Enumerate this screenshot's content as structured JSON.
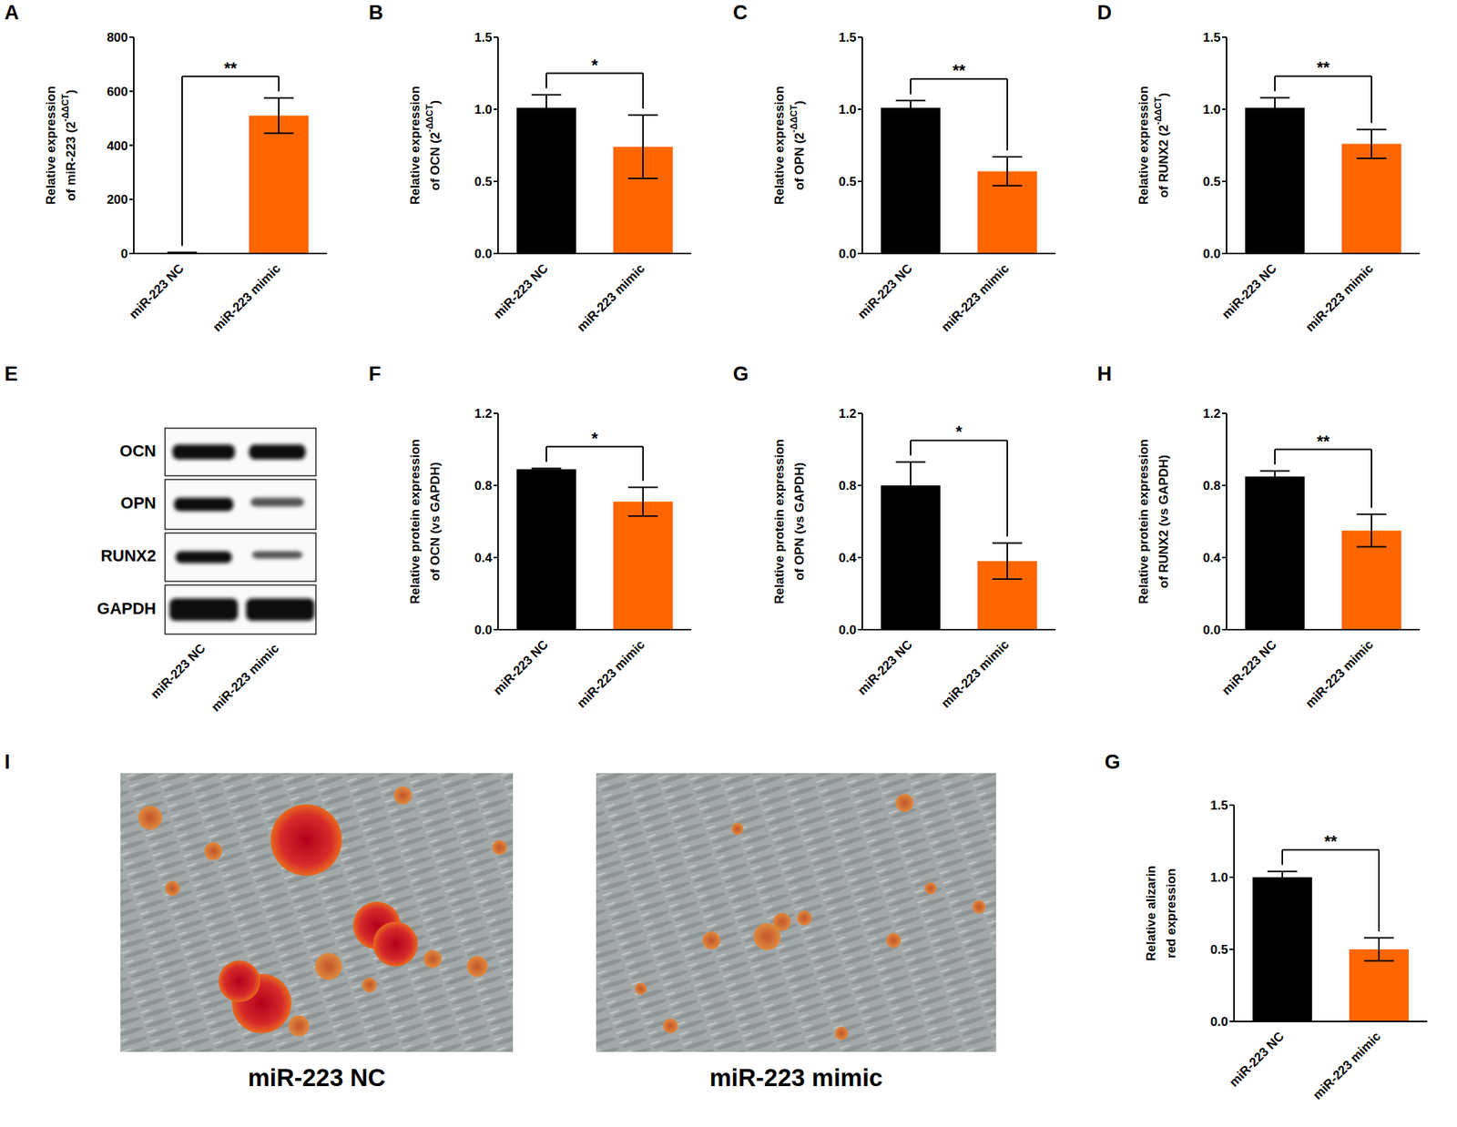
{
  "chart_data": [
    {
      "type": "bar",
      "title": "A",
      "y_label": [
        "Relative expression",
        "of miR-223 (2-ΔΔCT)"
      ],
      "categories": [
        "miR-223 NC",
        "miR-223 mimic"
      ],
      "values": [
        3,
        510
      ],
      "errors": [
        1,
        65
      ],
      "colors": [
        "#000000",
        "#ff6600"
      ],
      "ylim": [
        0,
        800
      ],
      "yticks": [
        0,
        200,
        400,
        600,
        800
      ],
      "annotations": [
        "**"
      ]
    },
    {
      "type": "bar",
      "title": "B",
      "y_label": [
        "Relative expression",
        "of OCN (2-ΔΔCT)"
      ],
      "categories": [
        "miR-223 NC",
        "miR-223 mimic"
      ],
      "values": [
        1.01,
        0.74
      ],
      "errors": [
        0.09,
        0.22
      ],
      "colors": [
        "#000000",
        "#ff6600"
      ],
      "ylim": [
        0,
        1.5
      ],
      "yticks": [
        {
          "value": 0,
          "label": "0.0"
        },
        0.5,
        {
          "value": 1,
          "label": "1.0"
        },
        1.5
      ],
      "annotations": [
        "*"
      ]
    },
    {
      "type": "bar",
      "title": "C",
      "y_label": [
        "Relative expression",
        "of OPN (2-ΔΔCT)"
      ],
      "categories": [
        "miR-223 NC",
        "miR-223 mimic"
      ],
      "values": [
        1.01,
        0.57
      ],
      "errors": [
        0.05,
        0.1
      ],
      "colors": [
        "#000000",
        "#ff6600"
      ],
      "ylim": [
        0,
        1.5
      ],
      "yticks": [
        {
          "value": 0,
          "label": "0.0"
        },
        0.5,
        {
          "value": 1,
          "label": "1.0"
        },
        1.5
      ],
      "annotations": [
        "**"
      ]
    },
    {
      "type": "bar",
      "title": "D",
      "y_label": [
        "Relative expression",
        "of RUNX2 (2-ΔΔCT)"
      ],
      "categories": [
        "miR-223 NC",
        "miR-223 mimic"
      ],
      "values": [
        1.01,
        0.76
      ],
      "errors": [
        0.07,
        0.1
      ],
      "colors": [
        "#000000",
        "#ff6600"
      ],
      "ylim": [
        0,
        1.5
      ],
      "yticks": [
        {
          "value": 0,
          "label": "0.0"
        },
        0.5,
        {
          "value": 1,
          "label": "1.0"
        },
        1.5
      ],
      "annotations": [
        "**"
      ]
    },
    {
      "type": "bar",
      "title": "F",
      "y_label": [
        "Relative protein expression",
        "of OCN (vs GAPDH)"
      ],
      "categories": [
        "miR-223 NC",
        "miR-223 mimic"
      ],
      "values": [
        0.89,
        0.71
      ],
      "errors": [
        0.005,
        0.08
      ],
      "colors": [
        "#000000",
        "#ff6600"
      ],
      "ylim": [
        0,
        1.2
      ],
      "yticks": [
        {
          "value": 0,
          "label": "0.0"
        },
        0.4,
        0.8,
        1.2
      ],
      "annotations": [
        "*"
      ]
    },
    {
      "type": "bar",
      "title": "G",
      "y_label": [
        "Relative protein expression",
        "of OPN (vs GAPDH)"
      ],
      "categories": [
        "miR-223 NC",
        "miR-223 mimic"
      ],
      "values": [
        0.8,
        0.38
      ],
      "errors": [
        0.13,
        0.1
      ],
      "colors": [
        "#000000",
        "#ff6600"
      ],
      "ylim": [
        0,
        1.2
      ],
      "yticks": [
        {
          "value": 0,
          "label": "0.0"
        },
        0.4,
        0.8,
        1.2
      ],
      "annotations": [
        "*"
      ]
    },
    {
      "type": "bar",
      "title": "H",
      "y_label": [
        "Relative protein expression",
        "of RUNX2 (vs GAPDH)"
      ],
      "categories": [
        "miR-223 NC",
        "miR-223 mimic"
      ],
      "values": [
        0.85,
        0.55
      ],
      "errors": [
        0.03,
        0.09
      ],
      "colors": [
        "#000000",
        "#ff6600"
      ],
      "ylim": [
        0,
        1.2
      ],
      "yticks": [
        {
          "value": 0,
          "label": "0.0"
        },
        0.4,
        0.8,
        1.2
      ],
      "annotations": [
        "**"
      ]
    },
    {
      "type": "bar",
      "title": "G",
      "y_label": [
        "Relative alizarin",
        "red expression"
      ],
      "categories": [
        "miR-223 NC",
        "miR-223 mimic"
      ],
      "values": [
        1.0,
        0.5
      ],
      "errors": [
        0.04,
        0.08
      ],
      "colors": [
        "#000000",
        "#ff6600"
      ],
      "ylim": [
        0,
        1.5
      ],
      "yticks": [
        {
          "value": 0,
          "label": "0.0"
        },
        0.5,
        {
          "value": 1,
          "label": "1.0"
        },
        1.5
      ],
      "annotations": [
        "**"
      ]
    }
  ],
  "blot": {
    "title": "E",
    "rows": [
      "OCN",
      "OPN",
      "RUNX2",
      "GAPDH"
    ],
    "lanes": [
      "miR-223 NC",
      "miR-223 mimic"
    ]
  },
  "images": {
    "title": "I",
    "captions": [
      "miR-223 NC",
      "miR-223 mimic"
    ]
  }
}
